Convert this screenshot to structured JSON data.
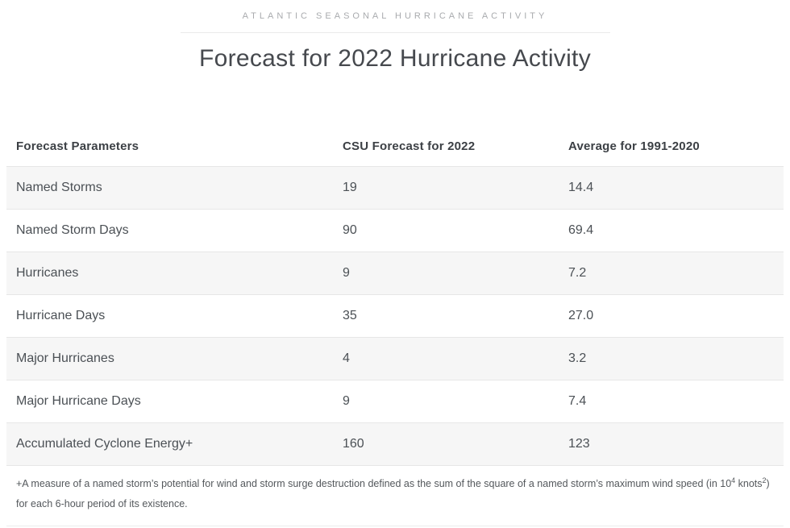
{
  "header": {
    "eyebrow": "ATLANTIC SEASONAL HURRICANE ACTIVITY",
    "title": "Forecast for 2022 Hurricane Activity"
  },
  "table": {
    "columns": [
      "Forecast Parameters",
      "CSU Forecast for 2022",
      "Average for 1991-2020"
    ],
    "rows": [
      {
        "parameter": "Named Storms",
        "csu_forecast_2022": "19",
        "average_1991_2020": "14.4"
      },
      {
        "parameter": "Named Storm Days",
        "csu_forecast_2022": "90",
        "average_1991_2020": "69.4"
      },
      {
        "parameter": "Hurricanes",
        "csu_forecast_2022": "9",
        "average_1991_2020": "7.2"
      },
      {
        "parameter": "Hurricane Days",
        "csu_forecast_2022": "35",
        "average_1991_2020": "27.0"
      },
      {
        "parameter": "Major Hurricanes",
        "csu_forecast_2022": "4",
        "average_1991_2020": "3.2"
      },
      {
        "parameter": "Major Hurricane Days",
        "csu_forecast_2022": "9",
        "average_1991_2020": "7.4"
      },
      {
        "parameter": "Accumulated Cyclone Energy+",
        "csu_forecast_2022": "160",
        "average_1991_2020": "123"
      }
    ]
  },
  "footnote": {
    "part1": "+A measure of a named storm’s potential for wind and storm surge destruction defined as the sum of the square of a named storm’s maximum wind speed (in 10",
    "sup1": "4",
    "part2": " knots",
    "sup2": "2",
    "part3": ") for each 6-hour period of its existence."
  },
  "chart_data": {
    "type": "table",
    "title": "Forecast for 2022 Hurricane Activity",
    "subtitle": "ATLANTIC SEASONAL HURRICANE ACTIVITY",
    "columns": [
      "Forecast Parameters",
      "CSU Forecast for 2022",
      "Average for 1991-2020"
    ],
    "rows": [
      [
        "Named Storms",
        19,
        14.4
      ],
      [
        "Named Storm Days",
        90,
        69.4
      ],
      [
        "Hurricanes",
        9,
        7.2
      ],
      [
        "Hurricane Days",
        35,
        27.0
      ],
      [
        "Major Hurricanes",
        4,
        3.2
      ],
      [
        "Major Hurricane Days",
        9,
        7.4
      ],
      [
        "Accumulated Cyclone Energy+",
        160,
        123
      ]
    ],
    "layout_hints": {
      "row_striping": true,
      "stripe_on": "odd-rows"
    }
  },
  "colors": {
    "row_stripe": "#f6f6f6",
    "divider": "#e7e7e7",
    "eyebrow_text": "#a9abae",
    "title_text": "#46494e",
    "header_text": "#3c4045",
    "body_text": "#4b5055",
    "footnote_text": "#54585c"
  }
}
